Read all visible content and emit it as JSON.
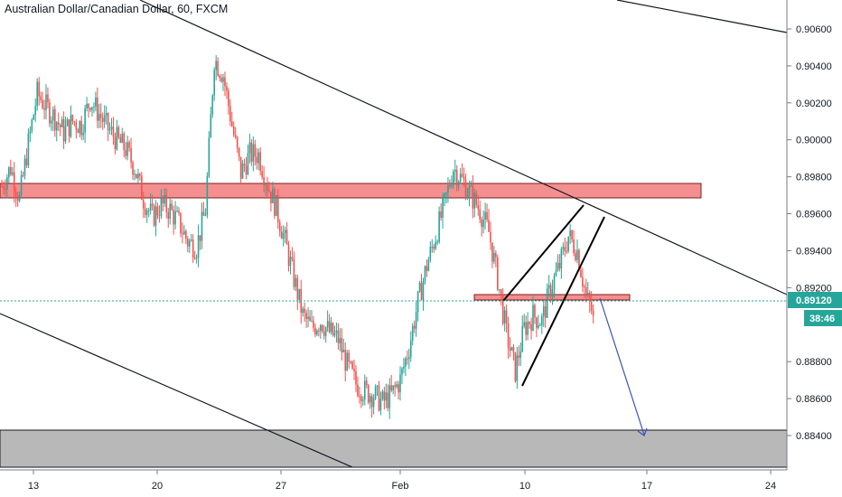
{
  "header": {
    "title": "Australian Dollar/Canadian Dollar, 60, FXCM"
  },
  "colors": {
    "up": "#26a69a",
    "down": "#ef5350",
    "zone_fill": "#f48f8f",
    "zone_border": "#b71c1c",
    "support_zone_fill": "#b8b8b8",
    "trendline": "#131722",
    "projection_arrow": "#3f51b5",
    "price_line": "#26a69a",
    "badge_price": "#26a69a",
    "badge_timer": "#26a69a"
  },
  "price_axis": {
    "labels": [
      "0.90600",
      "0.90400",
      "0.90200",
      "0.90000",
      "0.89800",
      "0.89600",
      "0.89400",
      "0.89200",
      "0.88800",
      "0.88600",
      "0.88400"
    ],
    "current_price": "0.89120",
    "countdown": "38:46"
  },
  "time_axis": {
    "labels": [
      "13",
      "20",
      "27",
      "Feb",
      "10",
      "17",
      "24"
    ]
  },
  "chart_data": {
    "type": "candlestick",
    "title": "Australian Dollar/Canadian Dollar, 60, FXCM",
    "symbol": "AUDCAD",
    "timeframe": "60",
    "source": "FXCM",
    "ylim": [
      0.8823,
      0.9073
    ],
    "yticks": [
      0.906,
      0.904,
      0.902,
      0.9,
      0.898,
      0.896,
      0.894,
      0.892,
      0.888,
      0.886,
      0.884
    ],
    "xticks": [
      "13",
      "20",
      "27",
      "Feb",
      "10",
      "17",
      "24"
    ],
    "last_price": 0.8912,
    "price_path": [
      [
        0.0,
        0.8975
      ],
      [
        0.5,
        0.8985
      ],
      [
        1.0,
        0.8968
      ],
      [
        1.5,
        0.8998
      ],
      [
        2.0,
        0.9025
      ],
      [
        2.5,
        0.9018
      ],
      [
        3.0,
        0.9012
      ],
      [
        3.5,
        0.9004
      ],
      [
        4.0,
        0.901
      ],
      [
        4.5,
        0.9008
      ],
      [
        5.0,
        0.9022
      ],
      [
        5.5,
        0.9014
      ],
      [
        6.0,
        0.9006
      ],
      [
        6.5,
        0.9
      ],
      [
        7.0,
        0.8995
      ],
      [
        7.5,
        0.8985
      ],
      [
        8.0,
        0.8968
      ],
      [
        8.5,
        0.8958
      ],
      [
        9.0,
        0.8965
      ],
      [
        9.5,
        0.8962
      ],
      [
        10.0,
        0.8955
      ],
      [
        10.5,
        0.8945
      ],
      [
        11.0,
        0.8942
      ],
      [
        11.5,
        0.8962
      ],
      [
        12.0,
        0.9044
      ],
      [
        12.5,
        0.9035
      ],
      [
        13.0,
        0.9008
      ],
      [
        13.5,
        0.8982
      ],
      [
        14.0,
        0.8992
      ],
      [
        14.5,
        0.8992
      ],
      [
        15.0,
        0.8976
      ],
      [
        15.5,
        0.8963
      ],
      [
        16.0,
        0.8945
      ],
      [
        16.5,
        0.8925
      ],
      [
        17.0,
        0.8905
      ],
      [
        17.5,
        0.8898
      ],
      [
        18.0,
        0.8902
      ],
      [
        18.5,
        0.8896
      ],
      [
        19.0,
        0.8892
      ],
      [
        19.5,
        0.8878
      ],
      [
        20.0,
        0.8868
      ],
      [
        20.5,
        0.8864
      ],
      [
        21.0,
        0.8862
      ],
      [
        21.5,
        0.8858
      ],
      [
        22.0,
        0.8862
      ],
      [
        22.5,
        0.887
      ],
      [
        23.0,
        0.8888
      ],
      [
        23.5,
        0.8912
      ],
      [
        24.0,
        0.8932
      ],
      [
        24.5,
        0.8948
      ],
      [
        25.0,
        0.8965
      ],
      [
        25.5,
        0.8985
      ],
      [
        26.0,
        0.8978
      ],
      [
        26.5,
        0.897
      ],
      [
        27.0,
        0.8962
      ],
      [
        27.5,
        0.895
      ],
      [
        28.0,
        0.8925
      ],
      [
        28.5,
        0.8895
      ],
      [
        29.0,
        0.8875
      ],
      [
        29.5,
        0.8898
      ],
      [
        30.0,
        0.8905
      ],
      [
        30.5,
        0.8902
      ],
      [
        31.0,
        0.892
      ],
      [
        31.5,
        0.8932
      ],
      [
        32.0,
        0.8948
      ],
      [
        32.5,
        0.894
      ],
      [
        33.0,
        0.8915
      ],
      [
        33.3,
        0.8908
      ],
      [
        33.5,
        0.8896
      ]
    ],
    "resistance_zone": [
      0.8969,
      0.8976
    ],
    "mid_zone": [
      0.8912,
      0.8916
    ],
    "support_zone": [
      0.8823,
      0.8843
    ],
    "projection": {
      "from": [
        33.5,
        0.8912
      ],
      "to": [
        36.5,
        0.8839
      ]
    }
  }
}
